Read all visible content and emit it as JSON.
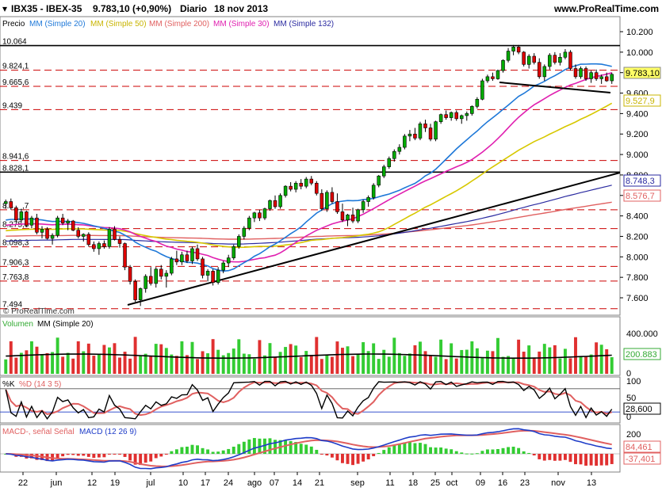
{
  "header": {
    "instrument": "IBX35 - IBEX-35",
    "quote": "9.783,10 (+0,90%)",
    "period": "Diario",
    "date": "18 nov 2013",
    "site": "www.ProRealTime.com"
  },
  "colors": {
    "background": "#ffffff",
    "panel_bg": "#ffffff",
    "up_candle": "#00aa00",
    "down_candle": "#dd0000",
    "mm20": "#1e78d8",
    "mm50": "#d7c800",
    "mm200": "#e06060",
    "mm30": "#e020b0",
    "mm132": "#2a2aa0",
    "support_line": "#000000",
    "hline_red": "#cc0000",
    "vol_up": "#33cc33",
    "vol_down": "#e03030",
    "stoch_k": "#000000",
    "stoch_d": "#e06060",
    "macd_line": "#1e3cc8",
    "signal_line": "#e06060"
  },
  "price_panel": {
    "legend": {
      "prefix": "Precio",
      "mm20": "MM (Simple 20)",
      "mm50": "MM (Simple 50)",
      "mm200": "MM (Simple 200)",
      "mm30": "MM (Simple 30)",
      "mm132": "MM (Simple 132)"
    },
    "level_labels": [
      "10.064",
      "9.824,1",
      "9.665,6",
      "9.439",
      "8.941,6",
      "8.828,1",
      "8.4__,7",
      "8.275,8",
      "8.098,3",
      "7.906,3",
      "7.763,8",
      "7.494"
    ],
    "axis_ticks": [
      "10.200",
      "10.000",
      "9.800",
      "9.600",
      "9.400",
      "9.200",
      "9.000",
      "8.800",
      "8.600",
      "8.400",
      "8.200",
      "8.000",
      "7.800",
      "7.600"
    ],
    "value_tags": {
      "last": "9.783,10",
      "mm50": "9.527,9",
      "mm132": "8.748,3",
      "mm200": "8.576,7"
    },
    "copyright": "© ProRealTime.com"
  },
  "volume_panel": {
    "legend_prefix": "Volumen",
    "legend_ma": "MM (Simple 20)",
    "axis_ticks": [
      "400.000",
      "0"
    ],
    "value_tag": "200.883"
  },
  "stoch_panel": {
    "legend_k": "%K",
    "legend_d": "%D (14 3 5)",
    "axis_ticks": [
      "100",
      "50",
      "0"
    ],
    "value_tag": "28,600"
  },
  "macd_panel": {
    "legend_hist": "MACD-, señal Señal",
    "legend_macd": "MACD (12 26 9)",
    "axis_ticks": [
      "200",
      "0"
    ],
    "value_tag_1": "84,461",
    "value_tag_2": "-37,401"
  },
  "x_axis": {
    "labels": [
      "22",
      "jun",
      "12",
      "19",
      "jul",
      "10",
      "17",
      "24",
      "ago",
      "07",
      "14",
      "21",
      "sep",
      "11",
      "18",
      "25",
      "oct",
      "09",
      "16",
      "23",
      "nov",
      "13"
    ],
    "positions": [
      29,
      71,
      116,
      145,
      190,
      231,
      259,
      288,
      321,
      346,
      375,
      403,
      451,
      492,
      521,
      549,
      570,
      606,
      634,
      662,
      704,
      746
    ]
  },
  "chart_data": [
    {
      "type": "candlestick",
      "title": "IBX35 - IBEX-35 Diario",
      "ylim": [
        7450,
        10280
      ],
      "horizontal_levels": [
        10064,
        9824.1,
        9665.6,
        9439,
        8941.6,
        8828.1,
        8460,
        8275.8,
        8098.3,
        7906.3,
        7763.8,
        7494
      ],
      "solid_levels": [
        10064,
        8828.1
      ],
      "ohlc": [
        [
          8520,
          8560,
          8470,
          8540
        ],
        [
          8540,
          8570,
          8460,
          8480
        ],
        [
          8480,
          8500,
          8340,
          8360
        ],
        [
          8360,
          8470,
          8330,
          8440
        ],
        [
          8440,
          8450,
          8290,
          8310
        ],
        [
          8310,
          8400,
          8280,
          8380
        ],
        [
          8380,
          8420,
          8220,
          8240
        ],
        [
          8240,
          8300,
          8180,
          8270
        ],
        [
          8270,
          8290,
          8170,
          8180
        ],
        [
          8180,
          8230,
          8120,
          8210
        ],
        [
          8210,
          8400,
          8190,
          8380
        ],
        [
          8380,
          8420,
          8310,
          8330
        ],
        [
          8330,
          8370,
          8260,
          8350
        ],
        [
          8350,
          8360,
          8250,
          8260
        ],
        [
          8260,
          8290,
          8180,
          8200
        ],
        [
          8200,
          8230,
          8150,
          8220
        ],
        [
          8220,
          8240,
          8100,
          8120
        ],
        [
          8120,
          8150,
          8050,
          8080
        ],
        [
          8080,
          8150,
          8020,
          8130
        ],
        [
          8130,
          8160,
          8080,
          8100
        ],
        [
          8100,
          8290,
          8080,
          8270
        ],
        [
          8270,
          8300,
          8160,
          8170
        ],
        [
          8170,
          8200,
          8090,
          8130
        ],
        [
          8130,
          8140,
          7870,
          7900
        ],
        [
          7900,
          7920,
          7730,
          7760
        ],
        [
          7760,
          7780,
          7560,
          7580
        ],
        [
          7580,
          7700,
          7520,
          7690
        ],
        [
          7690,
          7830,
          7650,
          7810
        ],
        [
          7810,
          7900,
          7720,
          7740
        ],
        [
          7740,
          7900,
          7700,
          7880
        ],
        [
          7880,
          7920,
          7780,
          7810
        ],
        [
          7810,
          7870,
          7700,
          7840
        ],
        [
          7840,
          8000,
          7820,
          7980
        ],
        [
          7980,
          8060,
          7920,
          7950
        ],
        [
          7950,
          8050,
          7920,
          8020
        ],
        [
          8020,
          8060,
          7940,
          7960
        ],
        [
          7960,
          8100,
          7930,
          8080
        ],
        [
          8080,
          8120,
          7960,
          7980
        ],
        [
          7980,
          8000,
          7790,
          7820
        ],
        [
          7820,
          7880,
          7760,
          7860
        ],
        [
          7860,
          7880,
          7720,
          7750
        ],
        [
          7750,
          7900,
          7730,
          7870
        ],
        [
          7870,
          7960,
          7840,
          7940
        ],
        [
          7940,
          8020,
          7900,
          7990
        ],
        [
          7990,
          8120,
          7970,
          8100
        ],
        [
          8100,
          8220,
          8080,
          8200
        ],
        [
          8200,
          8300,
          8170,
          8280
        ],
        [
          8280,
          8400,
          8260,
          8380
        ],
        [
          8380,
          8440,
          8340,
          8430
        ],
        [
          8430,
          8460,
          8350,
          8380
        ],
        [
          8380,
          8480,
          8360,
          8470
        ],
        [
          8470,
          8560,
          8450,
          8550
        ],
        [
          8550,
          8600,
          8470,
          8490
        ],
        [
          8490,
          8620,
          8470,
          8600
        ],
        [
          8600,
          8700,
          8580,
          8690
        ],
        [
          8690,
          8730,
          8640,
          8660
        ],
        [
          8660,
          8740,
          8630,
          8720
        ],
        [
          8720,
          8760,
          8660,
          8690
        ],
        [
          8690,
          8780,
          8670,
          8760
        ],
        [
          8760,
          8790,
          8700,
          8720
        ],
        [
          8720,
          8740,
          8600,
          8620
        ],
        [
          8620,
          8660,
          8450,
          8470
        ],
        [
          8470,
          8650,
          8440,
          8630
        ],
        [
          8630,
          8680,
          8520,
          8540
        ],
        [
          8540,
          8620,
          8420,
          8440
        ],
        [
          8440,
          8520,
          8340,
          8360
        ],
        [
          8360,
          8420,
          8300,
          8410
        ],
        [
          8410,
          8480,
          8330,
          8350
        ],
        [
          8350,
          8470,
          8330,
          8460
        ],
        [
          8460,
          8560,
          8430,
          8540
        ],
        [
          8540,
          8600,
          8490,
          8580
        ],
        [
          8580,
          8720,
          8560,
          8700
        ],
        [
          8700,
          8800,
          8680,
          8790
        ],
        [
          8790,
          8900,
          8770,
          8880
        ],
        [
          8880,
          8980,
          8860,
          8960
        ],
        [
          8960,
          9050,
          8930,
          9030
        ],
        [
          9030,
          9100,
          9000,
          9070
        ],
        [
          9070,
          9200,
          9050,
          9180
        ],
        [
          9180,
          9240,
          9130,
          9200
        ],
        [
          9200,
          9260,
          9140,
          9160
        ],
        [
          9160,
          9320,
          9140,
          9300
        ],
        [
          9300,
          9340,
          9220,
          9260
        ],
        [
          9260,
          9300,
          9130,
          9150
        ],
        [
          9150,
          9330,
          9130,
          9320
        ],
        [
          9320,
          9400,
          9300,
          9390
        ],
        [
          9390,
          9430,
          9340,
          9360
        ],
        [
          9360,
          9420,
          9330,
          9410
        ],
        [
          9410,
          9430,
          9330,
          9350
        ],
        [
          9350,
          9390,
          9300,
          9380
        ],
        [
          9380,
          9420,
          9330,
          9400
        ],
        [
          9400,
          9480,
          9380,
          9470
        ],
        [
          9470,
          9560,
          9450,
          9540
        ],
        [
          9540,
          9740,
          9530,
          9720
        ],
        [
          9720,
          9780,
          9700,
          9760
        ],
        [
          9760,
          9800,
          9720,
          9740
        ],
        [
          9740,
          9830,
          9730,
          9820
        ],
        [
          9820,
          9930,
          9800,
          9920
        ],
        [
          9920,
          10040,
          9900,
          10010
        ],
        [
          10010,
          10070,
          9970,
          10050
        ],
        [
          10050,
          10070,
          9980,
          10000
        ],
        [
          10000,
          10010,
          9860,
          9880
        ],
        [
          9880,
          9980,
          9840,
          9960
        ],
        [
          9960,
          9990,
          9880,
          9900
        ],
        [
          9900,
          9940,
          9740,
          9760
        ],
        [
          9760,
          9880,
          9720,
          9860
        ],
        [
          9860,
          9990,
          9830,
          9970
        ],
        [
          9970,
          10000,
          9880,
          9900
        ],
        [
          9900,
          9990,
          9870,
          9950
        ],
        [
          9950,
          10030,
          9930,
          10000
        ],
        [
          10000,
          10020,
          9820,
          9840
        ],
        [
          9840,
          9880,
          9740,
          9760
        ],
        [
          9760,
          9860,
          9740,
          9840
        ],
        [
          9840,
          9860,
          9720,
          9740
        ],
        [
          9740,
          9820,
          9700,
          9800
        ],
        [
          9800,
          9830,
          9720,
          9740
        ],
        [
          9740,
          9780,
          9690,
          9760
        ],
        [
          9760,
          9800,
          9710,
          9720
        ],
        [
          9720,
          9800,
          9690,
          9783
        ]
      ]
    }
  ]
}
